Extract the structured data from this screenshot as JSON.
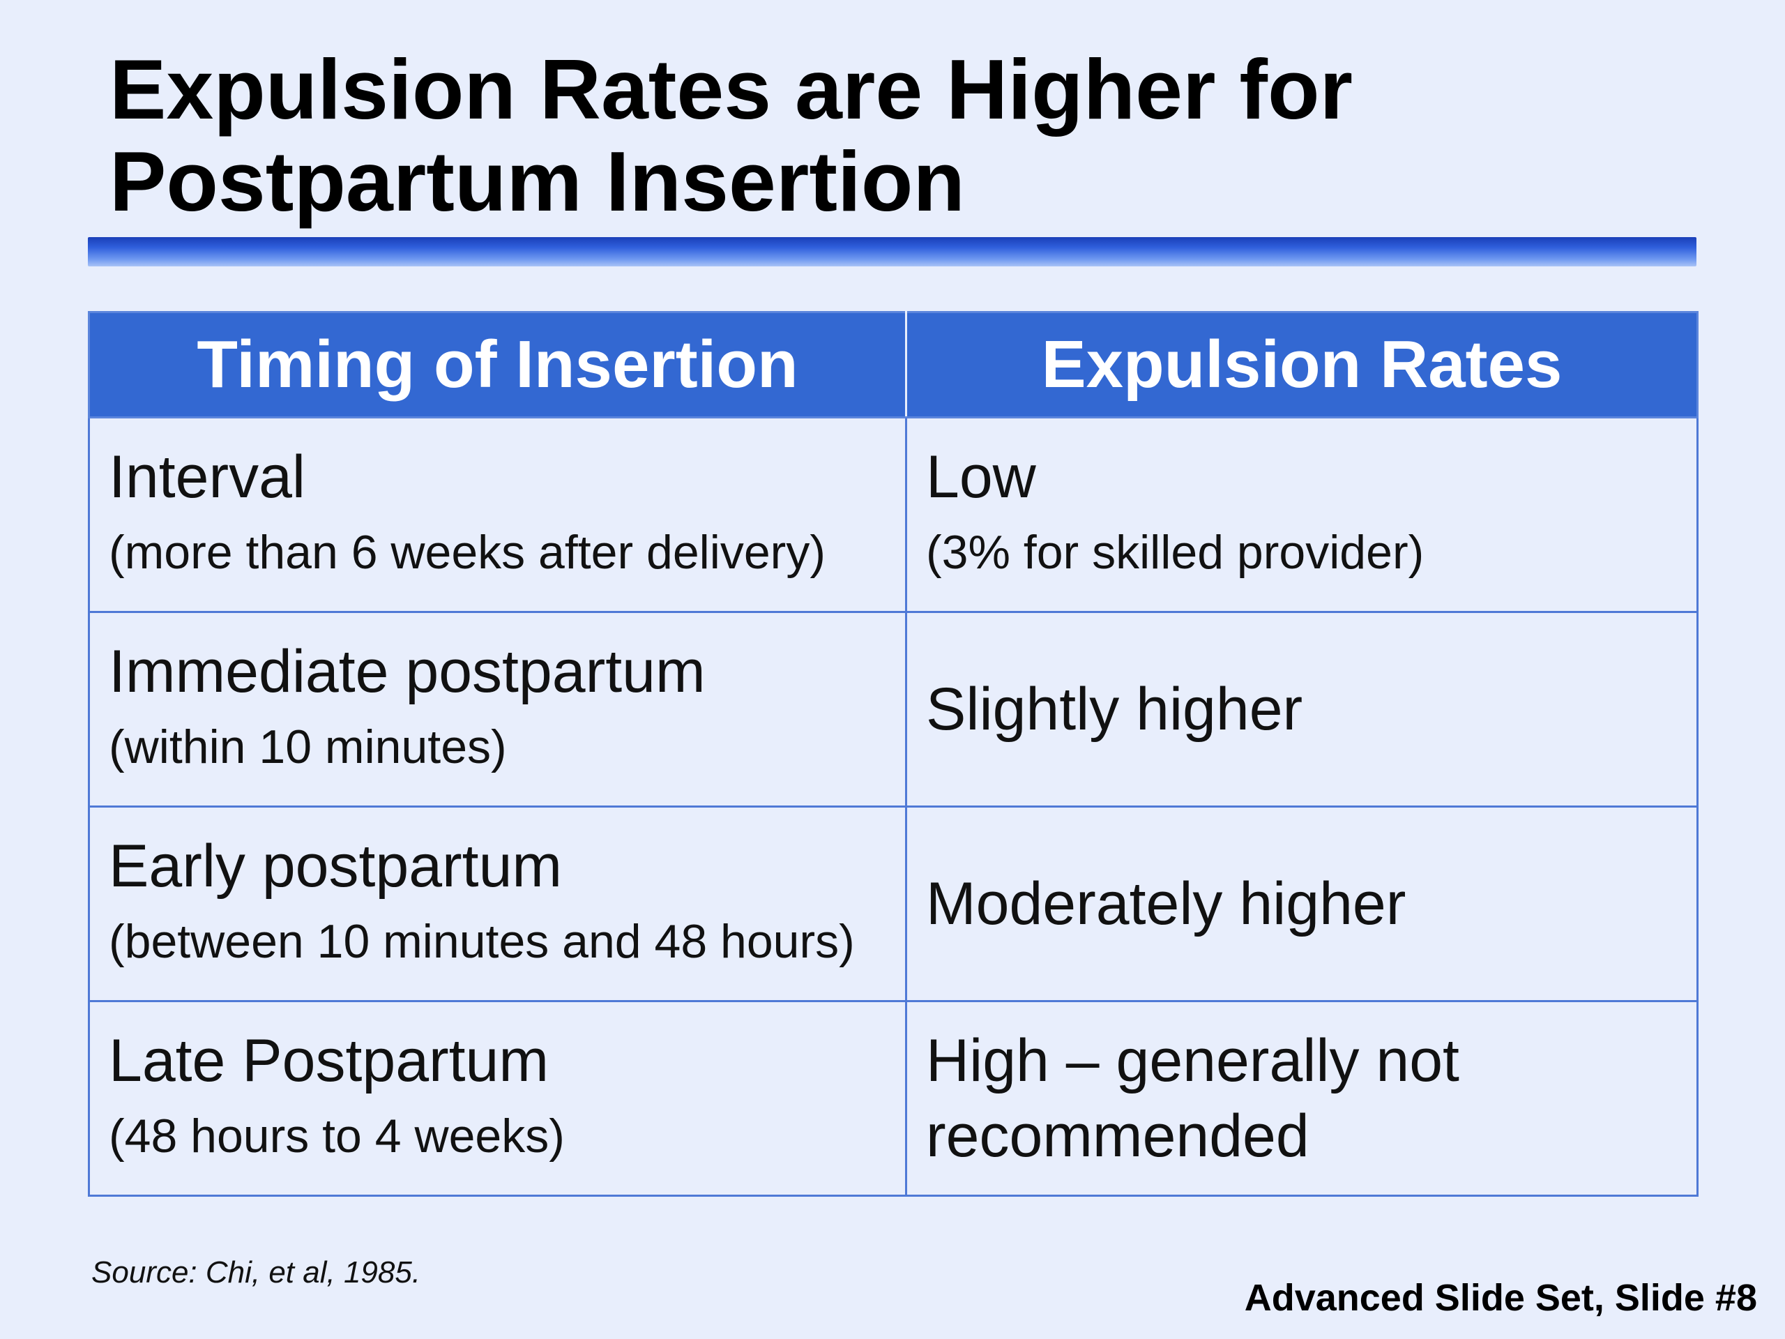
{
  "slide": {
    "title_line1": "Expulsion Rates are Higher for",
    "title_line2": "Postpartum Insertion",
    "accent_color": "#3368d2",
    "background_color": "#e8eefc"
  },
  "table": {
    "headers": [
      "Timing of Insertion",
      "Expulsion Rates"
    ],
    "rows": [
      {
        "timing": "Interval",
        "timing_detail": "(more than 6 weeks after delivery)",
        "rate": "Low",
        "rate_detail": "(3% for skilled provider)"
      },
      {
        "timing": "Immediate postpartum",
        "timing_detail": "(within 10 minutes)",
        "rate": "Slightly higher",
        "rate_detail": ""
      },
      {
        "timing": "Early postpartum",
        "timing_detail": "(between 10 minutes and 48 hours)",
        "rate": "Moderately higher",
        "rate_detail": ""
      },
      {
        "timing": "Late Postpartum",
        "timing_detail": "(48 hours to 4 weeks)",
        "rate": "High – generally not recommended",
        "rate_detail": ""
      }
    ]
  },
  "source": "Source: Chi, et al, 1985.",
  "footer": "Advanced Slide Set, Slide #8"
}
